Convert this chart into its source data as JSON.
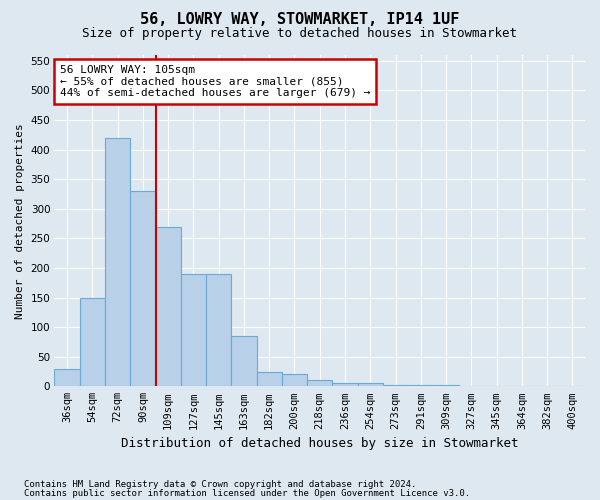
{
  "title1": "56, LOWRY WAY, STOWMARKET, IP14 1UF",
  "title2": "Size of property relative to detached houses in Stowmarket",
  "xlabel": "Distribution of detached houses by size in Stowmarket",
  "ylabel": "Number of detached properties",
  "footnote1": "Contains HM Land Registry data © Crown copyright and database right 2024.",
  "footnote2": "Contains public sector information licensed under the Open Government Licence v3.0.",
  "bin_labels": [
    "36sqm",
    "54sqm",
    "72sqm",
    "90sqm",
    "109sqm",
    "127sqm",
    "145sqm",
    "163sqm",
    "182sqm",
    "200sqm",
    "218sqm",
    "236sqm",
    "254sqm",
    "273sqm",
    "291sqm",
    "309sqm",
    "327sqm",
    "345sqm",
    "364sqm",
    "382sqm",
    "400sqm"
  ],
  "bar_heights": [
    30,
    150,
    420,
    330,
    270,
    190,
    190,
    85,
    25,
    20,
    10,
    5,
    5,
    2,
    2,
    2,
    1,
    1,
    1,
    1,
    1
  ],
  "bar_color": "#b8d0e8",
  "bar_edge_color": "#6aaad4",
  "vline_x": 3.5,
  "vline_color": "#cc0000",
  "annotation_text": "56 LOWRY WAY: 105sqm\n← 55% of detached houses are smaller (855)\n44% of semi-detached houses are larger (679) →",
  "annotation_box_color": "white",
  "annotation_box_edge_color": "#cc0000",
  "ylim": [
    0,
    560
  ],
  "yticks": [
    0,
    50,
    100,
    150,
    200,
    250,
    300,
    350,
    400,
    450,
    500,
    550
  ],
  "background_color": "#dde8f0",
  "plot_background_color": "#dde8f0",
  "grid_color": "#ffffff",
  "title1_fontsize": 11,
  "title2_fontsize": 9,
  "ylabel_fontsize": 8,
  "xlabel_fontsize": 9,
  "footnote_fontsize": 6.5,
  "tick_fontsize": 7.5,
  "annot_fontsize": 8
}
